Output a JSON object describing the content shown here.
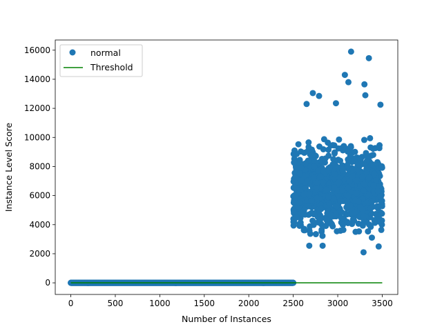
{
  "chart_data": {
    "type": "scatter",
    "xlabel": "Number of Instances",
    "ylabel": "Instance Level Score",
    "xlim": [
      -175,
      3675
    ],
    "ylim": [
      -800,
      16700
    ],
    "xticks": [
      0,
      500,
      1000,
      1500,
      2000,
      2500,
      3000,
      3500
    ],
    "yticks": [
      0,
      2000,
      4000,
      6000,
      8000,
      10000,
      12000,
      14000,
      16000
    ],
    "xtick_labels": [
      "0",
      "500",
      "1000",
      "1500",
      "2000",
      "2500",
      "3000",
      "3500"
    ],
    "ytick_labels": [
      "0",
      "2000",
      "4000",
      "6000",
      "8000",
      "10000",
      "12000",
      "14000",
      "16000"
    ],
    "grid": false,
    "legend_position": "top-left",
    "series": [
      {
        "name": "normal",
        "kind": "scatter",
        "color": "#1f77b4",
        "segments": [
          {
            "x_start": 0,
            "x_end": 2500,
            "y": 0,
            "count": 2500
          },
          {
            "x_start": 2500,
            "x_end": 3500,
            "y_center": 6500,
            "y_min": 2100,
            "y_max": 15900,
            "count": 1000
          }
        ],
        "notable_points": [
          {
            "x": 3150,
            "y": 15900
          },
          {
            "x": 3350,
            "y": 15450
          },
          {
            "x": 3080,
            "y": 14300
          },
          {
            "x": 3120,
            "y": 13800
          },
          {
            "x": 3300,
            "y": 13650
          },
          {
            "x": 2720,
            "y": 13050
          },
          {
            "x": 2790,
            "y": 12850
          },
          {
            "x": 3310,
            "y": 12900
          },
          {
            "x": 2650,
            "y": 12300
          },
          {
            "x": 2980,
            "y": 12350
          },
          {
            "x": 3480,
            "y": 12250
          },
          {
            "x": 3290,
            "y": 2100
          },
          {
            "x": 2680,
            "y": 2550
          },
          {
            "x": 2830,
            "y": 2550
          },
          {
            "x": 3460,
            "y": 2500
          }
        ]
      },
      {
        "name": "Threshold",
        "kind": "line",
        "color": "#008000",
        "x": [
          0,
          3500
        ],
        "y": [
          0,
          0
        ]
      }
    ]
  }
}
